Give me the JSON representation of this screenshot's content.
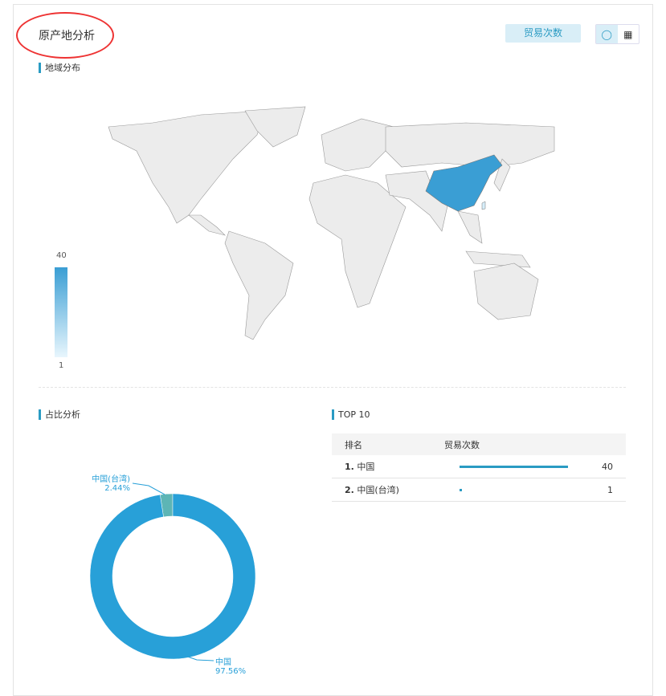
{
  "header": {
    "title": "原产地分析",
    "metric_button": "贸易次数",
    "view_icons": [
      "donut-icon",
      "table-icon"
    ]
  },
  "map_section": {
    "title": "地域分布",
    "legend_max": "40",
    "legend_min": "1",
    "highlight_color": "#3a9ed4",
    "base_color": "#ececec"
  },
  "share_section": {
    "title": "占比分析"
  },
  "top_section": {
    "title": "TOP 10",
    "col_rank": "排名",
    "col_count": "贸易次数",
    "rows": [
      {
        "rank": "1.",
        "name": "中国",
        "value": "40"
      },
      {
        "rank": "2.",
        "name": "中国(台湾)",
        "value": "1"
      }
    ]
  },
  "chart_data": {
    "type": "pie",
    "donut": true,
    "categories": [
      "中国(台湾)",
      "中国"
    ],
    "values": [
      1,
      40
    ],
    "labels": [
      {
        "name": "中国(台湾)",
        "pct": "2.44%"
      },
      {
        "name": "中国",
        "pct": "97.56%"
      }
    ],
    "colors": [
      "#5db5b5",
      "#28a0d8"
    ]
  }
}
